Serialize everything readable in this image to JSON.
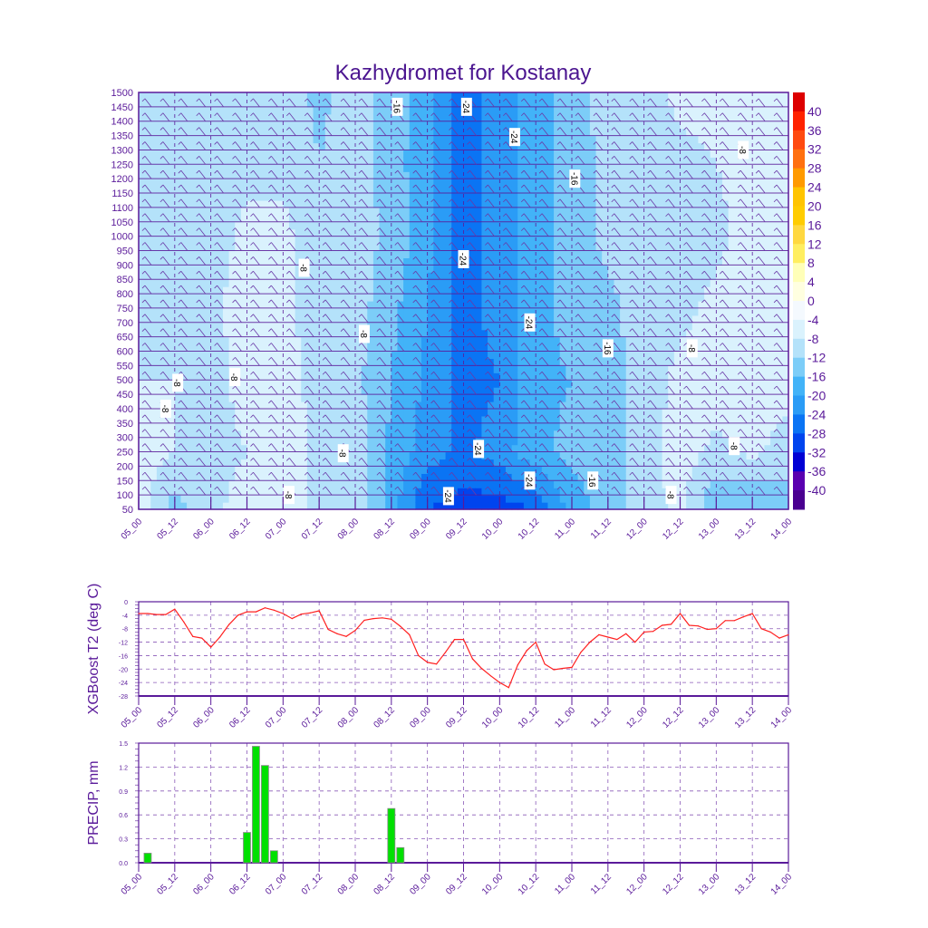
{
  "chart_data": [
    {
      "type": "heatmap",
      "title": "Kazhydromet for Kostanay",
      "x_unit": "hours from 05_00",
      "x_range": [
        0,
        216
      ],
      "y_range": [
        50,
        1500
      ],
      "y_ticks": [
        50,
        100,
        150,
        200,
        250,
        300,
        350,
        400,
        450,
        500,
        550,
        600,
        650,
        700,
        750,
        800,
        850,
        900,
        950,
        1000,
        1050,
        1100,
        1150,
        1200,
        1250,
        1300,
        1350,
        1400,
        1450,
        1500
      ],
      "time_labels": [
        "05_00",
        "05_12",
        "06_00",
        "06_12",
        "07_00",
        "07_12",
        "08_00",
        "08_12",
        "09_00",
        "09_12",
        "10_00",
        "10_12",
        "11_00",
        "11_12",
        "12_00",
        "12_12",
        "13_00",
        "13_12",
        "14_00"
      ],
      "grid_hours": [
        0,
        12,
        24,
        36,
        48,
        60,
        72,
        84,
        96,
        108,
        120,
        132,
        144,
        156,
        168,
        180,
        192,
        204,
        216
      ],
      "grid_heights": [
        50,
        250,
        500,
        750,
        1000,
        1250,
        1500
      ],
      "temperature": [
        [
          -6,
          -14,
          -9,
          -6,
          -5,
          -10,
          -10,
          -18,
          -28,
          -30,
          -30,
          -28,
          -18,
          -14,
          -10,
          -7,
          -16,
          -16,
          -14
        ],
        [
          -6,
          -8,
          -10,
          -8,
          -5,
          -9,
          -9,
          -17,
          -22,
          -25,
          -22,
          -17,
          -15,
          -14,
          -10,
          -6,
          -9,
          -7,
          -10
        ],
        [
          -8,
          -8,
          -10,
          -6,
          -6,
          -10,
          -11,
          -16,
          -21,
          -26,
          -24,
          -17,
          -16,
          -14,
          -10,
          -7,
          -6,
          -6,
          -6
        ],
        [
          -9,
          -10,
          -9,
          -6,
          -7,
          -10,
          -10,
          -15,
          -20,
          -26,
          -22,
          -18,
          -14,
          -13,
          -10,
          -9,
          -7,
          -6,
          -6
        ],
        [
          -8,
          -10,
          -10,
          -7,
          -7,
          -10,
          -10,
          -13,
          -19,
          -26,
          -22,
          -18,
          -14,
          -11,
          -10,
          -10,
          -9,
          -6,
          -6
        ],
        [
          -9,
          -10,
          -10,
          -9,
          -9,
          -12,
          -10,
          -14,
          -19,
          -26,
          -22,
          -18,
          -14,
          -11,
          -10,
          -9,
          -8,
          -7,
          -6
        ],
        [
          -10,
          -10,
          -10,
          -10,
          -10,
          -13,
          -10,
          -14,
          -18,
          -26,
          -22,
          -18,
          -14,
          -10,
          -10,
          -7,
          -7,
          -7,
          -6
        ]
      ],
      "contour_labels": [
        {
          "hour": 86,
          "height": 1450,
          "text": "-16"
        },
        {
          "hour": 109,
          "height": 1450,
          "text": "-24"
        },
        {
          "hour": 125,
          "height": 1345,
          "text": "-24"
        },
        {
          "hour": 145,
          "height": 1200,
          "text": "-16"
        },
        {
          "hour": 201,
          "height": 1300,
          "text": "-8"
        },
        {
          "hour": 108,
          "height": 920,
          "text": "-24"
        },
        {
          "hour": 55,
          "height": 890,
          "text": "-8"
        },
        {
          "hour": 130,
          "height": 700,
          "text": "-24"
        },
        {
          "hour": 75,
          "height": 660,
          "text": "-8"
        },
        {
          "hour": 156,
          "height": 610,
          "text": "-16"
        },
        {
          "hour": 184,
          "height": 610,
          "text": "-8"
        },
        {
          "hour": 13,
          "height": 490,
          "text": "-8"
        },
        {
          "hour": 32,
          "height": 510,
          "text": "-8"
        },
        {
          "hour": 9,
          "height": 400,
          "text": "-8"
        },
        {
          "hour": 68,
          "height": 245,
          "text": "-8"
        },
        {
          "hour": 113,
          "height": 260,
          "text": "-24"
        },
        {
          "hour": 198,
          "height": 270,
          "text": "-8"
        },
        {
          "hour": 130,
          "height": 150,
          "text": "-24"
        },
        {
          "hour": 151,
          "height": 150,
          "text": "-16"
        },
        {
          "hour": 103,
          "height": 96,
          "text": "-24"
        },
        {
          "hour": 50,
          "height": 100,
          "text": "-8"
        },
        {
          "hour": 177,
          "height": 100,
          "text": "-8"
        }
      ],
      "colorbar": {
        "labels": [
          "40",
          "36",
          "32",
          "28",
          "24",
          "20",
          "16",
          "12",
          "8",
          "4",
          "0",
          "-4",
          "-8",
          "-12",
          "-16",
          "-20",
          "-24",
          "-28",
          "-32",
          "-36",
          "-40"
        ],
        "levels": [
          40,
          36,
          32,
          28,
          24,
          20,
          16,
          12,
          8,
          4,
          0,
          -4,
          -8,
          -12,
          -16,
          -20,
          -24,
          -28,
          -32,
          -36,
          -40
        ],
        "colors": [
          "#dd0000",
          "#ff2200",
          "#ff4a10",
          "#ff7010",
          "#ff9a00",
          "#ffc400",
          "#ffcc00",
          "#ffd840",
          "#ffee60",
          "#ffffb8",
          "#ffffe0",
          "#f4f9fe",
          "#daf2fd",
          "#b4e2fa",
          "#7ccdf8",
          "#42b3f8",
          "#2a9cf6",
          "#0a74f4",
          "#0044ee",
          "#0000d4",
          "#5a00b0",
          "#4a0090"
        ]
      }
    },
    {
      "type": "line",
      "ylabel": "XGBoost T2 (deg C)",
      "ylim": [
        -28,
        0
      ],
      "y_ticks": [
        "0",
        "-4",
        "-8",
        "-12",
        "-16",
        "-20",
        "-24",
        "-28"
      ],
      "y_tick_values": [
        0,
        -4,
        -8,
        -12,
        -16,
        -20,
        -24,
        -28
      ],
      "x_step_hours": 3,
      "color": "#ff2020",
      "values": [
        -3.5,
        -3.5,
        -3.8,
        -3.8,
        -2.2,
        -6,
        -10.3,
        -10.8,
        -13.5,
        -10.5,
        -6.8,
        -4,
        -3,
        -3,
        -1.8,
        -2.5,
        -3.5,
        -5,
        -3.7,
        -3.3,
        -2.7,
        -8.2,
        -9.5,
        -10.3,
        -8.5,
        -5.5,
        -5,
        -4.8,
        -5.2,
        -7.3,
        -9.8,
        -16,
        -18,
        -18.5,
        -15,
        -11.2,
        -11.2,
        -17,
        -19.8,
        -22,
        -24,
        -25.5,
        -18.8,
        -14.5,
        -12,
        -18.5,
        -20.2,
        -19.8,
        -19.5,
        -15,
        -12,
        -9.8,
        -10.5,
        -11.2,
        -9.5,
        -12,
        -9,
        -8.8,
        -7,
        -6.7,
        -3.5,
        -7,
        -7.2,
        -8.2,
        -8,
        -5.6,
        -5.6,
        -4.5,
        -3.5,
        -8,
        -9,
        -10.8,
        -9.8
      ]
    },
    {
      "type": "bar",
      "ylabel": "PRECIP, mm",
      "ylim": [
        0,
        1.5
      ],
      "y_ticks": [
        "0.0",
        "0.3",
        "0.6",
        "0.9",
        "1.2",
        "1.5"
      ],
      "y_tick_values": [
        0,
        0.3,
        0.6,
        0.9,
        1.2,
        1.5
      ],
      "color": "#00e000",
      "bars": [
        {
          "hour": 3,
          "value": 0.12
        },
        {
          "hour": 36,
          "value": 0.38
        },
        {
          "hour": 39,
          "value": 1.46
        },
        {
          "hour": 42,
          "value": 1.22
        },
        {
          "hour": 45,
          "value": 0.15
        },
        {
          "hour": 84,
          "value": 0.68
        },
        {
          "hour": 87,
          "value": 0.19
        }
      ]
    }
  ]
}
